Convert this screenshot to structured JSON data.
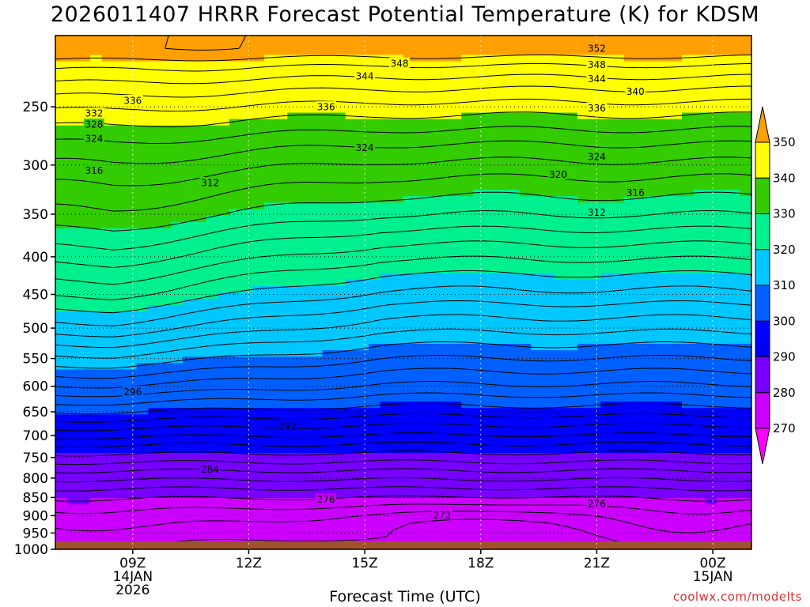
{
  "chart_data": {
    "type": "heatmap",
    "title": "2026011407 HRRR Forecast Potential Temperature (K) for KDSM",
    "xlabel": "Forecast Time (UTC)",
    "credit": "coolwx.com/modelts",
    "y_axis": {
      "scale": "log-pressure",
      "reversed": true,
      "range": [
        1000,
        200
      ],
      "ticks": [
        250,
        300,
        350,
        400,
        450,
        500,
        550,
        600,
        650,
        700,
        750,
        800,
        850,
        900,
        950,
        1000
      ]
    },
    "x_axis": {
      "range_hours": [
        0,
        18
      ],
      "ticks": [
        {
          "hour": 2,
          "lines": [
            "09Z",
            "14JAN",
            "2026"
          ]
        },
        {
          "hour": 5,
          "lines": [
            "12Z"
          ]
        },
        {
          "hour": 8,
          "lines": [
            "15Z"
          ]
        },
        {
          "hour": 11,
          "lines": [
            "18Z"
          ]
        },
        {
          "hour": 14,
          "lines": [
            "21Z"
          ]
        },
        {
          "hour": 17,
          "lines": [
            "00Z",
            "15JAN"
          ]
        }
      ]
    },
    "colorbar": {
      "levels": [
        270,
        280,
        290,
        300,
        310,
        320,
        330,
        340,
        350
      ],
      "extend": "both",
      "colors": [
        "#ff00ff",
        "#cc00ff",
        "#7700ff",
        "#0000ff",
        "#0060ff",
        "#00c8ff",
        "#00f090",
        "#33cc00",
        "#ffff00",
        "#ffa000"
      ]
    },
    "contour_interval_k": 2,
    "ground_color": "#a0522d",
    "contour_labels": [
      {
        "v": "352",
        "h": 14.0,
        "p": 208
      },
      {
        "v": "348",
        "h": 8.9,
        "p": 218
      },
      {
        "v": "348",
        "h": 14.0,
        "p": 219
      },
      {
        "v": "344",
        "h": 8.0,
        "p": 227
      },
      {
        "v": "344",
        "h": 14.0,
        "p": 229
      },
      {
        "v": "340",
        "h": 15.0,
        "p": 238
      },
      {
        "v": "336",
        "h": 2.0,
        "p": 245
      },
      {
        "v": "336",
        "h": 7.0,
        "p": 250
      },
      {
        "v": "336",
        "h": 14.0,
        "p": 251
      },
      {
        "v": "332",
        "h": 1.0,
        "p": 255
      },
      {
        "v": "328",
        "h": 1.0,
        "p": 264
      },
      {
        "v": "324",
        "h": 1.0,
        "p": 276
      },
      {
        "v": "324",
        "h": 8.0,
        "p": 284
      },
      {
        "v": "324",
        "h": 14.0,
        "p": 292
      },
      {
        "v": "320",
        "h": 13.0,
        "p": 309
      },
      {
        "v": "316",
        "h": 1.0,
        "p": 305
      },
      {
        "v": "312",
        "h": 4.0,
        "p": 317
      },
      {
        "v": "316",
        "h": 15.0,
        "p": 327
      },
      {
        "v": "312",
        "h": 14.0,
        "p": 348
      },
      {
        "v": "296",
        "h": 2.0,
        "p": 610
      },
      {
        "v": "292",
        "h": 6.0,
        "p": 680
      },
      {
        "v": "284",
        "h": 4.0,
        "p": 778
      },
      {
        "v": "276",
        "h": 7.0,
        "p": 855
      },
      {
        "v": "276",
        "h": 14.0,
        "p": 866
      },
      {
        "v": "272",
        "h": 10.0,
        "p": 898
      }
    ]
  }
}
